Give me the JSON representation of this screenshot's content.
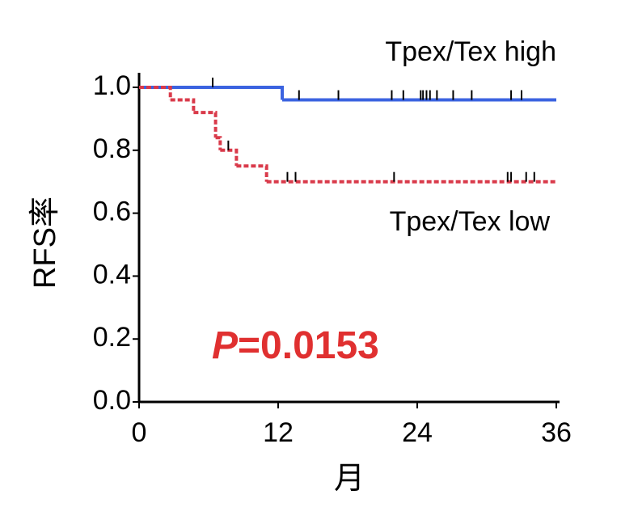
{
  "chart_data": {
    "type": "survival",
    "x_label": "月",
    "y_label": "RFS率",
    "xlim": [
      0,
      36
    ],
    "xticks": [
      0,
      12,
      24,
      36
    ],
    "ylim": [
      0,
      1
    ],
    "yticks": [
      {
        "value": 0,
        "label": "0.0"
      },
      {
        "value": 0.2,
        "label": "0.2"
      },
      {
        "value": 0.4,
        "label": "0.4"
      },
      {
        "value": 0.6,
        "label": "0.6"
      },
      {
        "value": 0.8,
        "label": "0.8"
      },
      {
        "value": 1,
        "label": "1.0"
      }
    ],
    "series": [
      {
        "name": "Tpex/Tex high",
        "color": "#3b63e0",
        "dash": false,
        "x": [
          0,
          12.35,
          36
        ],
        "y": [
          1.0,
          0.96,
          0.96
        ],
        "censored": {
          "x": [
            6.35,
            13.8,
            17.2,
            21.8,
            22.8,
            24.3,
            24.5,
            24.8,
            25.1,
            25.7,
            27.1,
            28.7,
            32.1,
            33.0
          ],
          "y": [
            1.0,
            0.96,
            0.96,
            0.96,
            0.96,
            0.96,
            0.96,
            0.96,
            0.96,
            0.96,
            0.96,
            0.96,
            0.96,
            0.96
          ]
        }
      },
      {
        "name": "Tpex/Tex low",
        "color": "#d93a4a",
        "dash": true,
        "x": [
          0,
          2.7,
          4.7,
          6.6,
          7.0,
          8.4,
          11.0,
          36
        ],
        "y": [
          1.0,
          0.96,
          0.92,
          0.84,
          0.8,
          0.75,
          0.7,
          0.7
        ],
        "censored": {
          "x": [
            7.7,
            12.8,
            13.5,
            22.0,
            31.8,
            32.1,
            33.4,
            34.1
          ],
          "y": [
            0.8,
            0.7,
            0.7,
            0.7,
            0.7,
            0.7,
            0.7,
            0.7
          ]
        }
      }
    ],
    "p_value": {
      "symbol": "P",
      "text": "=0.0153"
    }
  }
}
